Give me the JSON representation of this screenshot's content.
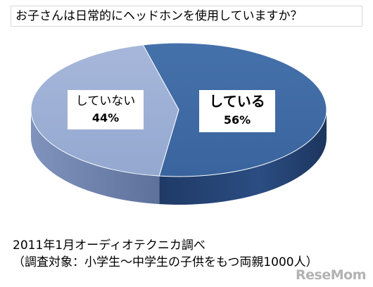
{
  "chart_data": {
    "type": "pie",
    "title": "お子さんは日常的にヘッドホンを使用していますか？",
    "slices": [
      {
        "label": "している",
        "value": 56,
        "display": "56%",
        "color": "#3d69a5"
      },
      {
        "label": "していない",
        "value": 44,
        "display": "44%",
        "color": "#9fb1d6"
      }
    ]
  },
  "footnotes": {
    "line1": "2011年1月オーディオテクニカ調べ",
    "line2": "（調査対象：小学生～中学生の子供をもつ両親1000人）"
  },
  "watermark": "ReseMom"
}
